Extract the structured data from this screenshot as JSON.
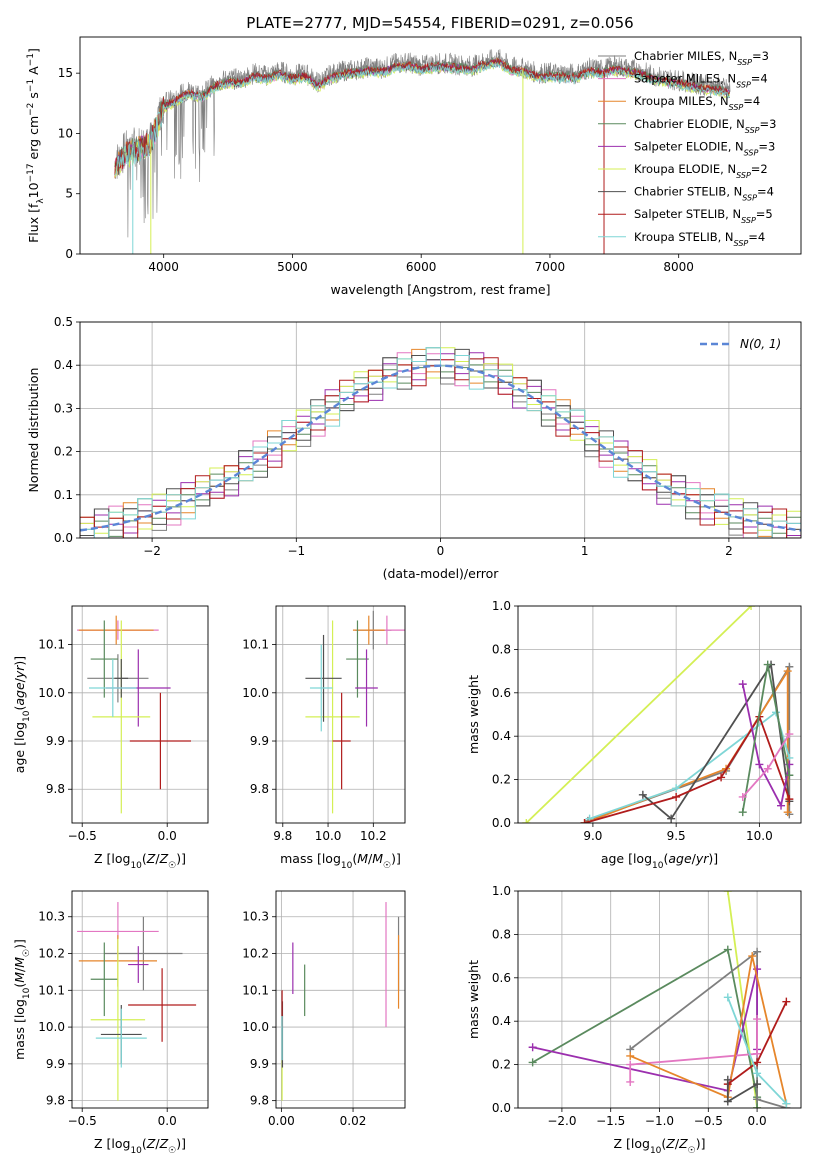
{
  "figure_title": "PLATE=2777, MJD=54554, FIBERID=0291, z=0.056",
  "colors": {
    "chabrier_miles": "#7f7f7f",
    "salpeter_miles": "#e377c2",
    "kroupa_miles": "#e6862b",
    "chabrier_elodie": "#5a8a5e",
    "salpeter_elodie": "#9b2fae",
    "kroupa_elodie": "#d4ef55",
    "chabrier_stelib": "#505050",
    "salpeter_stelib": "#b01c1c",
    "kroupa_stelib": "#7fd6d6",
    "gaussian": "#5b86d6",
    "grid": "#b0b0b0"
  },
  "chart_data": [
    {
      "id": "spectrum",
      "type": "line",
      "xlabel": "wavelength [Angstrom, rest frame]",
      "ylabel": "Flux [fλ10⁻¹⁷ erg cm⁻² s⁻¹ A⁻¹]",
      "xlim": [
        3350,
        8950
      ],
      "ylim": [
        0,
        18
      ],
      "xticks": [
        "4000",
        "5000",
        "6000",
        "7000",
        "8000"
      ],
      "yticks": [
        "0",
        "5",
        "10",
        "15"
      ],
      "grid": false,
      "legend_position": "right",
      "legend": [
        {
          "label": "Chabrier MILES, N",
          "sub": "SSP",
          "tail": "=3",
          "color_key": "chabrier_miles"
        },
        {
          "label": "Salpeter MILES, N",
          "sub": "SSP",
          "tail": "=4",
          "color_key": "salpeter_miles"
        },
        {
          "label": "Kroupa MILES, N",
          "sub": "SSP",
          "tail": "=4",
          "color_key": "kroupa_miles"
        },
        {
          "label": "Chabrier ELODIE, N",
          "sub": "SSP",
          "tail": "=3",
          "color_key": "chabrier_elodie"
        },
        {
          "label": "Salpeter ELODIE, N",
          "sub": "SSP",
          "tail": "=3",
          "color_key": "salpeter_elodie"
        },
        {
          "label": "Kroupa ELODIE, N",
          "sub": "SSP",
          "tail": "=2",
          "color_key": "kroupa_elodie"
        },
        {
          "label": "Chabrier STELIB, N",
          "sub": "SSP",
          "tail": "=4",
          "color_key": "chabrier_stelib"
        },
        {
          "label": "Salpeter STELIB, N",
          "sub": "SSP",
          "tail": "=5",
          "color_key": "salpeter_stelib"
        },
        {
          "label": "Kroupa STELIB, N",
          "sub": "SSP",
          "tail": "=4",
          "color_key": "kroupa_stelib"
        }
      ],
      "data_x": [
        3620,
        3700,
        3800,
        3900,
        3950,
        4000,
        4100,
        4200,
        4300,
        4400,
        4500,
        4600,
        4700,
        4800,
        4900,
        5000,
        5100,
        5200,
        5300,
        5400,
        5500,
        5600,
        5700,
        5800,
        5900,
        6000,
        6100,
        6200,
        6300,
        6400,
        6500,
        6600,
        6700,
        6800,
        6900,
        7000,
        7100,
        7200,
        7300,
        7400,
        7500,
        7600,
        7700,
        7800,
        7900,
        8000,
        8100,
        8200,
        8300,
        8400
      ],
      "data_y": [
        7.5,
        8.5,
        9.0,
        9.5,
        11.0,
        12.5,
        13.0,
        13.6,
        13.3,
        14.2,
        14.5,
        14.5,
        15.0,
        14.8,
        15.2,
        14.8,
        15.0,
        14.2,
        14.9,
        15.2,
        15.3,
        15.5,
        15.4,
        15.8,
        15.9,
        15.6,
        15.8,
        15.8,
        15.7,
        15.6,
        16.0,
        16.2,
        15.5,
        15.4,
        15.0,
        15.0,
        15.0,
        14.9,
        15.4,
        15.3,
        15.6,
        15.4,
        15.2,
        14.8,
        14.6,
        14.4,
        14.2,
        14.0,
        13.9,
        13.6
      ],
      "model_offsets": [
        0.0,
        -0.4,
        -0.25,
        -0.15,
        -0.3,
        -0.5,
        -0.35,
        -0.2,
        -0.45
      ]
    },
    {
      "id": "residuals",
      "type": "step-histogram",
      "xlabel": "(data-model)/error",
      "ylabel": "Normed distribution",
      "xlim": [
        -2.5,
        2.5
      ],
      "ylim": [
        0,
        0.5
      ],
      "xticks": [
        "−2",
        "−1",
        "0",
        "1",
        "2"
      ],
      "yticks": [
        "0.0",
        "0.1",
        "0.2",
        "0.3",
        "0.4",
        "0.5"
      ],
      "grid": true,
      "legend_position": "top-right",
      "gaussian_label": "N(0, 1)",
      "bin_width": 0.1,
      "series_jitter": [
        [
          0.01,
          -0.02,
          0.03,
          -0.01,
          0.02,
          0.0,
          -0.03,
          0.01,
          0.02,
          -0.02
        ],
        [
          -0.02,
          0.01,
          0.0,
          0.03,
          -0.01,
          0.02,
          0.01,
          -0.03,
          0.0,
          0.02
        ],
        [
          0.0,
          0.02,
          -0.02,
          0.01,
          0.03,
          -0.01,
          0.0,
          0.02,
          -0.02,
          0.01
        ],
        [
          0.02,
          0.0,
          0.01,
          -0.02,
          0.0,
          0.03,
          -0.01,
          0.0,
          0.01,
          -0.01
        ],
        [
          -0.01,
          -0.03,
          0.02,
          0.0,
          -0.02,
          0.01,
          0.02,
          -0.01,
          0.03,
          0.0
        ],
        [
          0.03,
          0.01,
          -0.01,
          0.02,
          0.01,
          -0.02,
          0.03,
          0.01,
          -0.01,
          0.02
        ],
        [
          0.0,
          -0.01,
          0.03,
          -0.03,
          0.02,
          0.01,
          -0.02,
          0.03,
          0.0,
          -0.02
        ],
        [
          -0.02,
          0.02,
          0.0,
          0.01,
          -0.03,
          0.0,
          0.01,
          -0.02,
          0.02,
          0.03
        ],
        [
          0.01,
          0.0,
          -0.02,
          0.02,
          0.01,
          0.03,
          0.0,
          0.02,
          -0.03,
          0.01
        ]
      ]
    },
    {
      "id": "age_vs_Z",
      "type": "errorbar",
      "xlabel": "Z [log10(Z/Z☉)]",
      "ylabel": "age  [log10(age/yr)]",
      "xlim": [
        -0.56,
        0.24
      ],
      "ylim": [
        9.73,
        10.18
      ],
      "xticks": [
        "−0.5",
        "0.0"
      ],
      "xtick_values": [
        -0.5,
        0.0
      ],
      "yticks": [
        "9.8",
        "9.9",
        "10.0",
        "10.1"
      ],
      "ytick_values": [
        9.8,
        9.9,
        10.0,
        10.1
      ],
      "grid": true,
      "points": [
        {
          "color_key": "chabrier_miles",
          "x": -0.29,
          "y": 10.03,
          "xerr": 0.18,
          "yerr": 0.05
        },
        {
          "color_key": "salpeter_miles",
          "x": -0.29,
          "y": 10.13,
          "xerr": 0.24,
          "yerr": 0.02
        },
        {
          "color_key": "kroupa_miles",
          "x": -0.3,
          "y": 10.13,
          "xerr": 0.22,
          "yerr": 0.03
        },
        {
          "color_key": "chabrier_elodie",
          "x": -0.37,
          "y": 10.07,
          "xerr": 0.08,
          "yerr": 0.08
        },
        {
          "color_key": "salpeter_elodie",
          "x": -0.17,
          "y": 10.01,
          "xerr": 0.19,
          "yerr": 0.08
        },
        {
          "color_key": "kroupa_elodie",
          "x": -0.27,
          "y": 9.95,
          "xerr": 0.17,
          "yerr": 0.2
        },
        {
          "color_key": "chabrier_stelib",
          "x": -0.27,
          "y": 10.03,
          "xerr": 0.04,
          "yerr": 0.04
        },
        {
          "color_key": "salpeter_stelib",
          "x": -0.04,
          "y": 9.9,
          "xerr": 0.18,
          "yerr": 0.1
        },
        {
          "color_key": "kroupa_stelib",
          "x": -0.32,
          "y": 10.01,
          "xerr": 0.14,
          "yerr": 0.06
        }
      ]
    },
    {
      "id": "age_vs_mass",
      "type": "errorbar",
      "xlabel": "mass [log10(M/M☉)]",
      "ylabel": "",
      "xlim": [
        9.77,
        10.34
      ],
      "ylim": [
        9.73,
        10.18
      ],
      "xticks": [
        "9.8",
        "10.0",
        "10.2"
      ],
      "xtick_values": [
        9.8,
        10.0,
        10.2
      ],
      "yticks": [
        "9.8",
        "9.9",
        "10.0",
        "10.1"
      ],
      "ytick_values": [
        9.8,
        9.9,
        10.0,
        10.1
      ],
      "grid": true,
      "points": [
        {
          "color_key": "chabrier_miles",
          "x": 10.2,
          "y": 10.13,
          "xerr": 0.08,
          "yerr": 0.04
        },
        {
          "color_key": "salpeter_miles",
          "x": 10.26,
          "y": 10.13,
          "xerr": 0.08,
          "yerr": 0.03
        },
        {
          "color_key": "kroupa_miles",
          "x": 10.18,
          "y": 10.13,
          "xerr": 0.07,
          "yerr": 0.03
        },
        {
          "color_key": "chabrier_elodie",
          "x": 10.13,
          "y": 10.07,
          "xerr": 0.05,
          "yerr": 0.08
        },
        {
          "color_key": "salpeter_elodie",
          "x": 10.17,
          "y": 10.01,
          "xerr": 0.05,
          "yerr": 0.08
        },
        {
          "color_key": "kroupa_elodie",
          "x": 10.02,
          "y": 9.95,
          "xerr": 0.12,
          "yerr": 0.2
        },
        {
          "color_key": "chabrier_stelib",
          "x": 9.98,
          "y": 10.03,
          "xerr": 0.08,
          "yerr": 0.09
        },
        {
          "color_key": "salpeter_stelib",
          "x": 10.06,
          "y": 9.9,
          "xerr": 0.04,
          "yerr": 0.1
        },
        {
          "color_key": "kroupa_stelib",
          "x": 9.97,
          "y": 10.01,
          "xerr": 0.05,
          "yerr": 0.09
        }
      ]
    },
    {
      "id": "weight_vs_age",
      "type": "line",
      "xlabel": "age  [log10(age/yr)]",
      "ylabel": "mass weight",
      "xlim": [
        8.55,
        10.25
      ],
      "ylim": [
        0,
        1
      ],
      "xticks": [
        "9.0",
        "9.5",
        "10.0"
      ],
      "xtick_values": [
        9.0,
        9.5,
        10.0
      ],
      "yticks": [
        "0.0",
        "0.2",
        "0.4",
        "0.6",
        "0.8",
        "1.0"
      ],
      "ytick_values": [
        0,
        0.2,
        0.4,
        0.6,
        0.8,
        1.0
      ],
      "grid": true,
      "series": [
        {
          "color_key": "kroupa_elodie",
          "x": [
            8.6,
            9.95
          ],
          "y": [
            0.0,
            1.0
          ]
        },
        {
          "color_key": "chabrier_miles",
          "x": [
            8.97,
            9.8,
            10.18,
            10.18
          ],
          "y": [
            0.01,
            0.24,
            0.72,
            0.04
          ]
        },
        {
          "color_key": "kroupa_miles",
          "x": [
            8.95,
            9.8,
            10.17,
            10.17
          ],
          "y": [
            0.0,
            0.25,
            0.7,
            0.05
          ]
        },
        {
          "color_key": "kroupa_stelib",
          "x": [
            8.98,
            9.5,
            10.1,
            10.18
          ],
          "y": [
            0.02,
            0.16,
            0.51,
            0.3
          ]
        },
        {
          "color_key": "chabrier_stelib",
          "x": [
            9.3,
            9.47,
            10.07,
            10.18
          ],
          "y": [
            0.13,
            0.02,
            0.73,
            0.1
          ]
        },
        {
          "color_key": "salpeter_stelib",
          "x": [
            8.95,
            9.5,
            9.77,
            10.0,
            10.18
          ],
          "y": [
            0.0,
            0.12,
            0.21,
            0.49,
            0.11
          ]
        },
        {
          "color_key": "salpeter_elodie",
          "x": [
            9.9,
            10.0,
            10.13,
            10.18
          ],
          "y": [
            0.64,
            0.27,
            0.08,
            0.27
          ]
        },
        {
          "color_key": "chabrier_elodie",
          "x": [
            9.9,
            10.05,
            10.18
          ],
          "y": [
            0.05,
            0.73,
            0.22
          ]
        },
        {
          "color_key": "salpeter_miles",
          "x": [
            9.9,
            10.05,
            10.18
          ],
          "y": [
            0.12,
            0.25,
            0.41
          ]
        }
      ]
    },
    {
      "id": "mass_vs_Z",
      "type": "errorbar",
      "xlabel": "Z [log10(Z/Z☉)]",
      "ylabel": "mass [log10(M/M☉)]",
      "xlim": [
        -0.56,
        0.24
      ],
      "ylim": [
        9.78,
        10.37
      ],
      "xticks": [
        "−0.5",
        "0.0"
      ],
      "xtick_values": [
        -0.5,
        0.0
      ],
      "yticks": [
        "9.8",
        "9.9",
        "10.0",
        "10.1",
        "10.2",
        "10.3"
      ],
      "ytick_values": [
        9.8,
        9.9,
        10.0,
        10.1,
        10.2,
        10.3
      ],
      "grid": true,
      "points": [
        {
          "color_key": "chabrier_miles",
          "x": -0.14,
          "y": 10.2,
          "xerr": 0.23,
          "yerr": 0.1
        },
        {
          "color_key": "salpeter_miles",
          "x": -0.29,
          "y": 10.26,
          "xerr": 0.24,
          "yerr": 0.08
        },
        {
          "color_key": "kroupa_miles",
          "x": -0.29,
          "y": 10.18,
          "xerr": 0.23,
          "yerr": 0.07
        },
        {
          "color_key": "chabrier_elodie",
          "x": -0.37,
          "y": 10.13,
          "xerr": 0.08,
          "yerr": 0.1
        },
        {
          "color_key": "salpeter_elodie",
          "x": -0.17,
          "y": 10.17,
          "xerr": 0.06,
          "yerr": 0.05
        },
        {
          "color_key": "kroupa_elodie",
          "x": -0.29,
          "y": 10.02,
          "xerr": 0.16,
          "yerr": 0.22
        },
        {
          "color_key": "chabrier_stelib",
          "x": -0.27,
          "y": 9.98,
          "xerr": 0.12,
          "yerr": 0.08
        },
        {
          "color_key": "salpeter_stelib",
          "x": -0.03,
          "y": 10.06,
          "xerr": 0.2,
          "yerr": 0.1
        },
        {
          "color_key": "kroupa_stelib",
          "x": -0.27,
          "y": 9.97,
          "xerr": 0.15,
          "yerr": 0.08
        }
      ]
    },
    {
      "id": "mass_vs_ebv",
      "type": "errorbar",
      "xlabel": "E(B-V)",
      "ylabel": "",
      "xlim": [
        -0.0015,
        0.0345
      ],
      "ylim": [
        9.78,
        10.37
      ],
      "xticks": [
        "0.00",
        "0.02"
      ],
      "xtick_values": [
        0.0,
        0.02
      ],
      "yticks": [
        "9.8",
        "9.9",
        "10.0",
        "10.1",
        "10.2",
        "10.3"
      ],
      "ytick_values": [
        9.8,
        9.9,
        10.0,
        10.1,
        10.2,
        10.3
      ],
      "grid": true,
      "points": [
        {
          "color_key": "chabrier_miles",
          "x": 0.0327,
          "y": 10.2,
          "xerr": 0,
          "yerr": 0.1
        },
        {
          "color_key": "salpeter_miles",
          "x": 0.0292,
          "y": 10.17,
          "xerr": 0,
          "yerr": 0.17
        },
        {
          "color_key": "kroupa_miles",
          "x": 0.0327,
          "y": 10.15,
          "xerr": 0,
          "yerr": 0.1
        },
        {
          "color_key": "chabrier_elodie",
          "x": 0.0065,
          "y": 10.1,
          "xerr": 0,
          "yerr": 0.07
        },
        {
          "color_key": "salpeter_elodie",
          "x": 0.0032,
          "y": 10.16,
          "xerr": 0,
          "yerr": 0.07
        },
        {
          "color_key": "kroupa_elodie",
          "x": 0.0002,
          "y": 9.92,
          "xerr": 0,
          "yerr": 0.12
        },
        {
          "color_key": "chabrier_stelib",
          "x": 0.0003,
          "y": 9.98,
          "xerr": 0,
          "yerr": 0.09
        },
        {
          "color_key": "salpeter_stelib",
          "x": 0.0002,
          "y": 10.05,
          "xerr": 0,
          "yerr": 0.05
        },
        {
          "color_key": "kroupa_stelib",
          "x": 0.0002,
          "y": 9.97,
          "xerr": 0,
          "yerr": 0.06
        }
      ]
    },
    {
      "id": "weight_vs_Z",
      "type": "line",
      "xlabel": "Z [log10(Z/Z☉)]",
      "ylabel": "mass weight",
      "xlim": [
        -2.45,
        0.45
      ],
      "ylim": [
        0,
        1
      ],
      "xticks": [
        "−2.0",
        "−1.5",
        "−1.0",
        "−0.5",
        "0.0"
      ],
      "xtick_values": [
        -2.0,
        -1.5,
        -1.0,
        -0.5,
        0.0
      ],
      "yticks": [
        "0.0",
        "0.2",
        "0.4",
        "0.6",
        "0.8",
        "1.0"
      ],
      "ytick_values": [
        0,
        0.2,
        0.4,
        0.6,
        0.8,
        1.0
      ],
      "grid": true,
      "series": [
        {
          "color_key": "kroupa_elodie",
          "x": [
            -0.3,
            0.0
          ],
          "y": [
            1.0,
            0.0
          ]
        },
        {
          "color_key": "chabrier_elodie",
          "x": [
            -2.3,
            -0.3,
            0.0,
            0.0
          ],
          "y": [
            0.21,
            0.73,
            0.05,
            0.0
          ]
        },
        {
          "color_key": "chabrier_miles",
          "x": [
            -1.3,
            0.0,
            0.0,
            0.3
          ],
          "y": [
            0.27,
            0.72,
            0.04,
            0.0
          ]
        },
        {
          "color_key": "salpeter_elodie",
          "x": [
            -2.3,
            -0.3,
            0.0,
            0.0
          ],
          "y": [
            0.28,
            0.08,
            0.64,
            0.27
          ]
        },
        {
          "color_key": "salpeter_miles",
          "x": [
            -1.3,
            -1.3,
            0.0,
            0.0
          ],
          "y": [
            0.12,
            0.2,
            0.25,
            0.41
          ]
        },
        {
          "color_key": "kroupa_miles",
          "x": [
            -1.3,
            -0.3,
            -0.05,
            0.3
          ],
          "y": [
            0.24,
            0.05,
            0.7,
            0.02
          ]
        },
        {
          "color_key": "salpeter_stelib",
          "x": [
            -0.3,
            0.0,
            0.3
          ],
          "y": [
            0.11,
            0.21,
            0.49
          ]
        },
        {
          "color_key": "chabrier_stelib",
          "x": [
            -0.3,
            -0.3,
            0.0
          ],
          "y": [
            0.13,
            0.03,
            0.11
          ]
        },
        {
          "color_key": "kroupa_stelib",
          "x": [
            -0.3,
            0.0,
            0.3
          ],
          "y": [
            0.51,
            0.16,
            0.02
          ]
        }
      ]
    }
  ]
}
